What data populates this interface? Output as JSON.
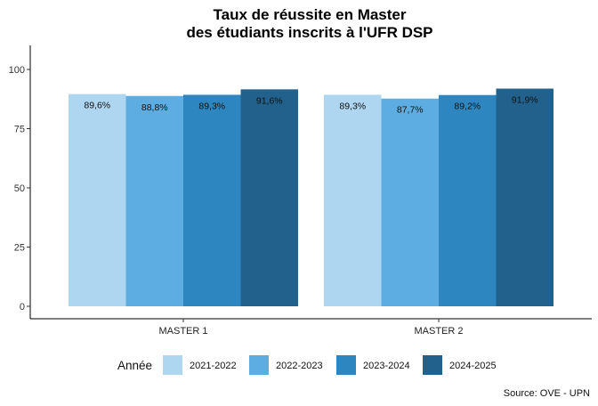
{
  "chart_data": {
    "type": "bar",
    "title_lines": [
      "Taux de réussite en Master",
      "des étudiants inscrits à l'UFR DSP"
    ],
    "xlabel": "",
    "ylabel": "",
    "ylim": [
      0,
      110
    ],
    "yticks": [
      "0",
      "25",
      "50",
      "75",
      "100"
    ],
    "ytick_values": [
      0,
      25,
      50,
      75,
      100
    ],
    "categories": [
      "MASTER 1",
      "MASTER 2"
    ],
    "series": [
      {
        "name": "2021-2022",
        "color": "#AED6F1",
        "values": [
          89.6,
          89.3
        ],
        "labels": [
          "89,6%",
          "89,3%"
        ]
      },
      {
        "name": "2022-2023",
        "color": "#5DADE2",
        "values": [
          88.8,
          87.7
        ],
        "labels": [
          "88,8%",
          "87,7%"
        ]
      },
      {
        "name": "2023-2024",
        "color": "#2E86C1",
        "values": [
          89.3,
          89.2
        ],
        "labels": [
          "89,3%",
          "89,2%"
        ]
      },
      {
        "name": "2024-2025",
        "color": "#21618C",
        "values": [
          91.6,
          91.9
        ],
        "labels": [
          "91,6%",
          "91,9%"
        ]
      }
    ],
    "legend_title": "Année",
    "legend_position": "bottom",
    "grid": false,
    "caption": "Source: OVE - UPN"
  }
}
